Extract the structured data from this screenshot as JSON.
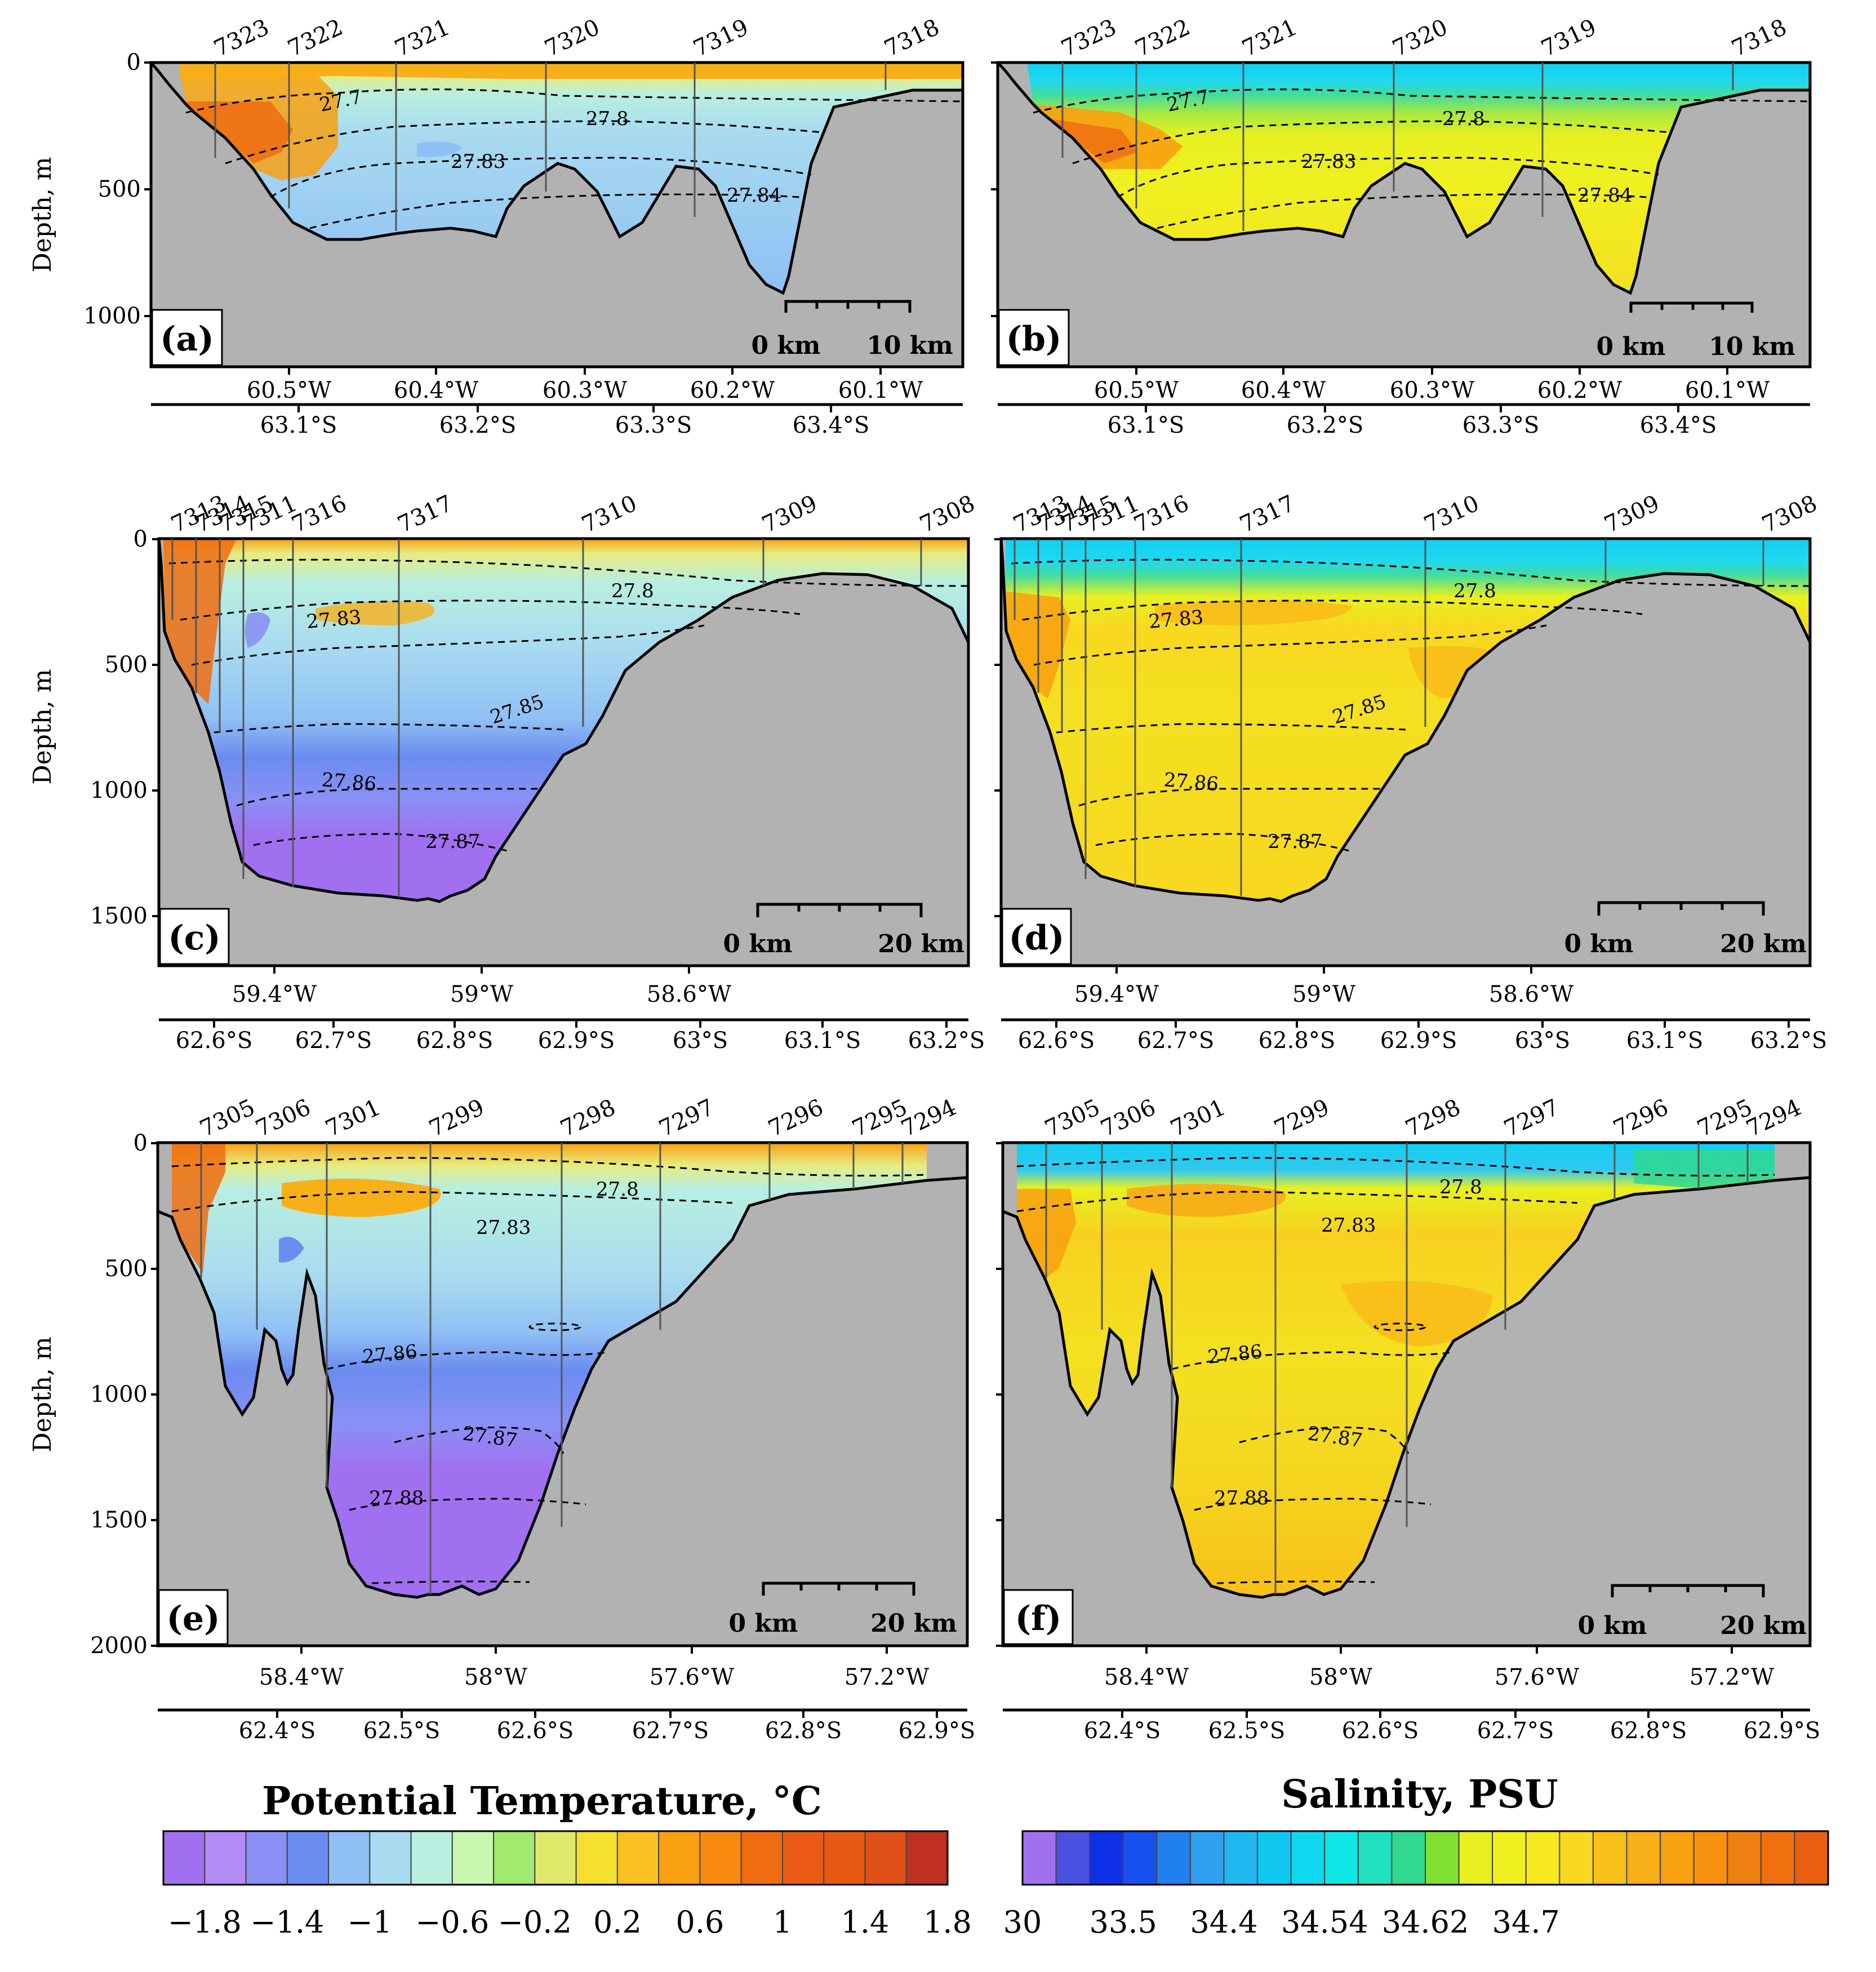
{
  "colorbars": {
    "temperature": {
      "title": "Potential Temperature, °C",
      "labels": [
        "−1.8",
        "−1.4",
        "−1",
        "−0.6",
        "−0.2",
        "0.2",
        "0.6",
        "1",
        "1.4",
        "1.8"
      ],
      "label_bins": [
        0,
        2,
        4,
        6,
        8,
        10,
        12,
        14,
        16,
        18
      ],
      "colors": [
        "#a070f0",
        "#b48cf5",
        "#8a90f5",
        "#6b8cf0",
        "#8fbff4",
        "#a8dbf0",
        "#b8efe0",
        "#c8f7b0",
        "#a0ea70",
        "#e0e86a",
        "#f5e030",
        "#f8c020",
        "#f8a010",
        "#f88a10",
        "#f06c10",
        "#ea5a14",
        "#e85a14",
        "#e05018",
        "#c03020"
      ]
    },
    "salinity": {
      "title": "Salinity, PSU",
      "labels": [
        "30",
        "33.5",
        "34.4",
        "34.54",
        "34.62",
        "34.7"
      ],
      "label_bins": [
        0,
        3,
        6,
        9,
        12,
        15
      ],
      "colors": [
        "#a070f0",
        "#4a50e0",
        "#1030e8",
        "#1850f0",
        "#2080f0",
        "#30a0f0",
        "#20b8f0",
        "#10c8f0",
        "#10d8f0",
        "#10e8e8",
        "#20e0c0",
        "#30d890",
        "#80e030",
        "#e8f020",
        "#f0f020",
        "#f8e820",
        "#f8d820",
        "#f8c018",
        "#f8b018",
        "#f8a010",
        "#f89010",
        "#f08010",
        "#f07010",
        "#e86010"
      ]
    }
  },
  "panels": [
    {
      "id": "a",
      "letter": "(a)",
      "variable": "temperature",
      "ylabel": "Depth, m",
      "yticks": [
        "0",
        "500",
        "1000"
      ],
      "lon_ticks": [
        "60.5°W",
        "60.4°W",
        "60.3°W",
        "60.2°W",
        "60.1°W"
      ],
      "lat_ticks": [
        "63.1°S",
        "63.2°S",
        "63.3°S",
        "63.4°S"
      ],
      "stations": [
        "7323",
        "7322",
        "7321",
        "7320",
        "7319",
        "7318"
      ],
      "isopycnals": [
        "27.7",
        "27.8",
        "27.83",
        "27.84"
      ],
      "scale": [
        "0 km",
        "10 km"
      ]
    },
    {
      "id": "b",
      "letter": "(b)",
      "variable": "salinity",
      "lon_ticks": [
        "60.5°W",
        "60.4°W",
        "60.3°W",
        "60.2°W",
        "60.1°W"
      ],
      "lat_ticks": [
        "63.1°S",
        "63.2°S",
        "63.3°S",
        "63.4°S"
      ],
      "stations": [
        "7323",
        "7322",
        "7321",
        "7320",
        "7319",
        "7318"
      ],
      "isopycnals": [
        "27.7",
        "27.8",
        "27.83",
        "27.84"
      ],
      "scale": [
        "0 km",
        "10 km"
      ]
    },
    {
      "id": "c",
      "letter": "(c)",
      "variable": "temperature",
      "ylabel": "Depth, m",
      "yticks": [
        "0",
        "500",
        "1000",
        "1500"
      ],
      "lon_ticks": [
        "59.4°W",
        "59°W",
        "58.6°W"
      ],
      "lat_ticks": [
        "62.6°S",
        "62.7°S",
        "62.8°S",
        "62.9°S",
        "63°S",
        "63.1°S",
        "63.2°S"
      ],
      "stations": [
        "7313",
        "7314",
        "7315",
        "7311",
        "7316",
        "7317",
        "7310",
        "7309",
        "7308"
      ],
      "isopycnals": [
        "27.8",
        "27.83",
        "27.85",
        "27.86",
        "27.87"
      ],
      "scale": [
        "0 km",
        "20 km"
      ]
    },
    {
      "id": "d",
      "letter": "(d)",
      "variable": "salinity",
      "lon_ticks": [
        "59.4°W",
        "59°W",
        "58.6°W"
      ],
      "lat_ticks": [
        "62.6°S",
        "62.7°S",
        "62.8°S",
        "62.9°S",
        "63°S",
        "63.1°S",
        "63.2°S"
      ],
      "stations": [
        "7313",
        "7314",
        "7315",
        "7311",
        "7316",
        "7317",
        "7310",
        "7309",
        "7308"
      ],
      "isopycnals": [
        "27.8",
        "27.83",
        "27.85",
        "27.86",
        "27.87"
      ],
      "scale": [
        "0 km",
        "20 km"
      ]
    },
    {
      "id": "e",
      "letter": "(e)",
      "variable": "temperature",
      "ylabel": "Depth, m",
      "yticks": [
        "0",
        "500",
        "1000",
        "1500",
        "2000"
      ],
      "lon_ticks": [
        "58.4°W",
        "58°W",
        "57.6°W",
        "57.2°W"
      ],
      "lat_ticks": [
        "62.4°S",
        "62.5°S",
        "62.6°S",
        "62.7°S",
        "62.8°S",
        "62.9°S"
      ],
      "stations": [
        "7305",
        "7306",
        "7301",
        "7299",
        "7298",
        "7297",
        "7296",
        "7295",
        "7294"
      ],
      "isopycnals": [
        "27.8",
        "27.83",
        "27.86",
        "27.87",
        "27.88"
      ],
      "scale": [
        "0 km",
        "20 km"
      ]
    },
    {
      "id": "f",
      "letter": "(f)",
      "variable": "salinity",
      "lon_ticks": [
        "58.4°W",
        "58°W",
        "57.6°W",
        "57.2°W"
      ],
      "lat_ticks": [
        "62.4°S",
        "62.5°S",
        "62.6°S",
        "62.7°S",
        "62.8°S",
        "62.9°S"
      ],
      "stations": [
        "7305",
        "7306",
        "7301",
        "7299",
        "7298",
        "7297",
        "7296",
        "7295",
        "7294"
      ],
      "isopycnals": [
        "27.8",
        "27.83",
        "27.86",
        "27.87",
        "27.88"
      ],
      "scale": [
        "0 km",
        "20 km"
      ]
    }
  ],
  "chart_data": [
    {
      "type": "heatmap",
      "panel": "a",
      "title": "",
      "ylabel": "Depth, m",
      "ylim": [
        0,
        1200
      ],
      "x_axis_1": "longitude (°W)",
      "x_axis_2": "latitude (°S)",
      "x_ticks": [
        60.5,
        60.4,
        60.3,
        60.2,
        60.1
      ],
      "x2_ticks": [
        63.1,
        63.2,
        63.3,
        63.4
      ],
      "stations": [
        "7323",
        "7322",
        "7321",
        "7320",
        "7319",
        "7318"
      ],
      "isopycnals": [
        27.7,
        27.8,
        27.83,
        27.84
      ],
      "max_depth": 920
    },
    {
      "type": "heatmap",
      "panel": "b",
      "title": "",
      "ylabel": "",
      "ylim": [
        0,
        1200
      ],
      "x_ticks": [
        60.5,
        60.4,
        60.3,
        60.2,
        60.1
      ],
      "x2_ticks": [
        63.1,
        63.2,
        63.3,
        63.4
      ],
      "stations": [
        "7323",
        "7322",
        "7321",
        "7320",
        "7319",
        "7318"
      ],
      "isopycnals": [
        27.7,
        27.8,
        27.83,
        27.84
      ],
      "max_depth": 920
    },
    {
      "type": "heatmap",
      "panel": "c",
      "title": "",
      "ylabel": "Depth, m",
      "ylim": [
        0,
        1700
      ],
      "x_ticks": [
        59.4,
        59.0,
        58.6
      ],
      "x2_ticks": [
        62.6,
        62.7,
        62.8,
        62.9,
        63.0,
        63.1,
        63.2
      ],
      "stations": [
        "7313",
        "7314",
        "7315",
        "7311",
        "7316",
        "7317",
        "7310",
        "7309",
        "7308"
      ],
      "isopycnals": [
        27.8,
        27.83,
        27.85,
        27.86,
        27.87
      ],
      "max_depth": 1450
    },
    {
      "type": "heatmap",
      "panel": "d",
      "title": "",
      "ylabel": "",
      "ylim": [
        0,
        1700
      ],
      "x_ticks": [
        59.4,
        59.0,
        58.6
      ],
      "x2_ticks": [
        62.6,
        62.7,
        62.8,
        62.9,
        63.0,
        63.1,
        63.2
      ],
      "stations": [
        "7313",
        "7314",
        "7315",
        "7311",
        "7316",
        "7317",
        "7310",
        "7309",
        "7308"
      ],
      "isopycnals": [
        27.8,
        27.83,
        27.85,
        27.86,
        27.87
      ],
      "max_depth": 1450
    },
    {
      "type": "heatmap",
      "panel": "e",
      "title": "",
      "ylabel": "Depth, m",
      "ylim": [
        0,
        2000
      ],
      "x_ticks": [
        58.4,
        58.0,
        57.6,
        57.2
      ],
      "x2_ticks": [
        62.4,
        62.5,
        62.6,
        62.7,
        62.8,
        62.9
      ],
      "stations": [
        "7305",
        "7306",
        "7301",
        "7299",
        "7298",
        "7297",
        "7296",
        "7295",
        "7294"
      ],
      "isopycnals": [
        27.8,
        27.83,
        27.86,
        27.87,
        27.88
      ],
      "max_depth": 1790
    },
    {
      "type": "heatmap",
      "panel": "f",
      "title": "",
      "ylabel": "",
      "ylim": [
        0,
        2000
      ],
      "x_ticks": [
        58.4,
        58.0,
        57.6,
        57.2
      ],
      "x2_ticks": [
        62.4,
        62.5,
        62.6,
        62.7,
        62.8,
        62.9
      ],
      "stations": [
        "7305",
        "7306",
        "7301",
        "7299",
        "7298",
        "7297",
        "7296",
        "7295",
        "7294"
      ],
      "isopycnals": [
        27.8,
        27.83,
        27.86,
        27.87,
        27.88
      ],
      "max_depth": 1790
    }
  ]
}
